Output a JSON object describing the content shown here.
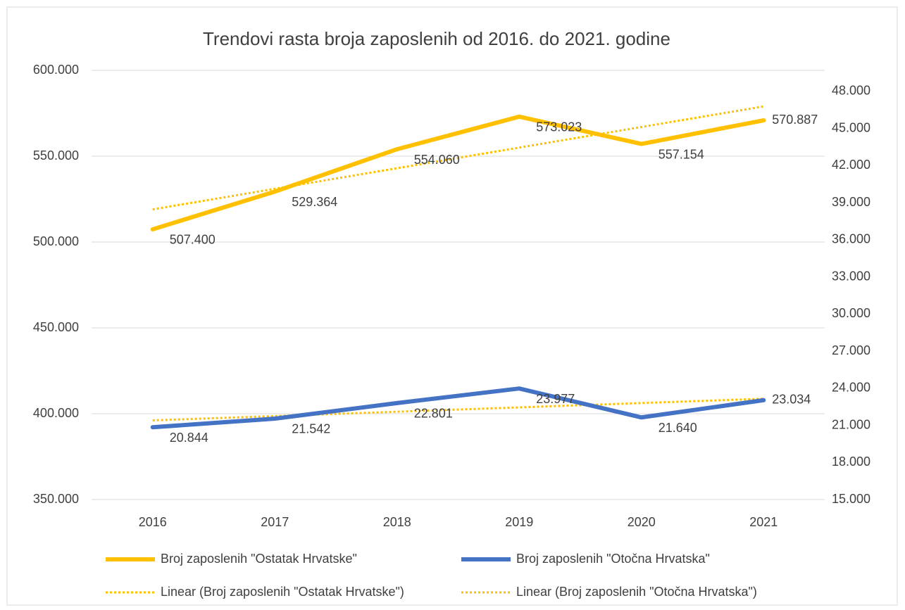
{
  "chart_data": {
    "type": "line",
    "title": "Trendovi rasta broja zaposlenih od 2016. do 2021. godine",
    "categories": [
      "2016",
      "2017",
      "2018",
      "2019",
      "2020",
      "2021"
    ],
    "ylim": [
      350000,
      600000
    ],
    "yticks": [
      {
        "value": 350000,
        "label": "350.000"
      },
      {
        "value": 400000,
        "label": "400.000"
      },
      {
        "value": 450000,
        "label": "450.000"
      },
      {
        "value": 500000,
        "label": "500.000"
      },
      {
        "value": 550000,
        "label": "550.000"
      },
      {
        "value": 600000,
        "label": "600.000"
      }
    ],
    "y2lim": [
      15000,
      49700
    ],
    "y2ticks": [
      {
        "value": 15000,
        "label": "15.000"
      },
      {
        "value": 18000,
        "label": "18.000"
      },
      {
        "value": 21000,
        "label": "21.000"
      },
      {
        "value": 24000,
        "label": "24.000"
      },
      {
        "value": 27000,
        "label": "27.000"
      },
      {
        "value": 30000,
        "label": "30.000"
      },
      {
        "value": 33000,
        "label": "33.000"
      },
      {
        "value": 36000,
        "label": "36.000"
      },
      {
        "value": 39000,
        "label": "39.000"
      },
      {
        "value": 42000,
        "label": "42.000"
      },
      {
        "value": 45000,
        "label": "45.000"
      },
      {
        "value": 48000,
        "label": "48.000"
      }
    ],
    "grid": true,
    "legend": "bottom",
    "series": [
      {
        "name": "Broj zaposlenih \"Ostatak Hrvatske\"",
        "color": "#ffc000",
        "style": "solid",
        "axis": "y",
        "values": [
          507400,
          529364,
          554060,
          573023,
          557154,
          570887
        ],
        "value_labels": [
          "507.400",
          "529.364",
          "554.060",
          "573.023",
          "557.154",
          "570.887"
        ]
      },
      {
        "name": "Broj zaposlenih \"Otočna Hrvatska\"",
        "color": "#4472c4",
        "style": "solid",
        "axis": "y2",
        "values": [
          20844,
          21542,
          22801,
          23977,
          21640,
          23034
        ],
        "value_labels": [
          "20.844",
          "21.542",
          "22.801",
          "23.977",
          "21.640",
          "23.034"
        ]
      },
      {
        "name": "Linear (Broj zaposlenih \"Ostatak Hrvatske\")",
        "color": "#ffc000",
        "style": "dotted",
        "axis": "y",
        "values": [
          519000,
          531000,
          543000,
          555000,
          567000,
          579000
        ]
      },
      {
        "name": "Linear (Broj zaposlenih \"Otočna Hrvatska\")",
        "color": "#ffc000",
        "style": "dotted",
        "axis": "y2",
        "values": [
          21400,
          21750,
          22100,
          22450,
          22800,
          23150
        ]
      }
    ]
  }
}
